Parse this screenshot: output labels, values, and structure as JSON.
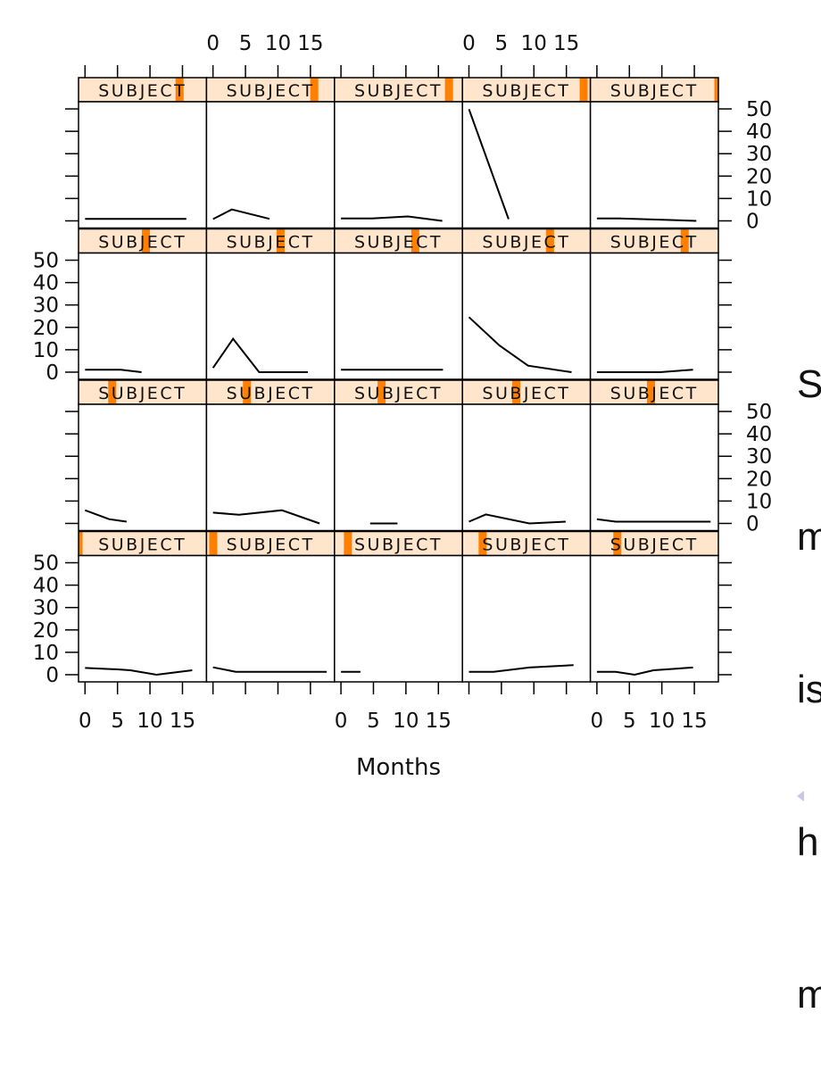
{
  "chart_data": {
    "type": "line",
    "layout": {
      "columns": 5,
      "rows": 4
    },
    "xlabel": "Months",
    "ylabel": "",
    "xlim": [
      -1,
      18.7
    ],
    "ylim": [
      -3.2,
      53.2
    ],
    "xticks": [
      0,
      5,
      10,
      15
    ],
    "xtick_labels": [
      "0",
      "5",
      "10",
      "15"
    ],
    "yticks": [
      0,
      10,
      20,
      30,
      40,
      50
    ],
    "ytick_labels": [
      "0",
      "10",
      "20",
      "30",
      "40",
      "50"
    ],
    "strip_label": "SUBJECT",
    "n_levels": 20,
    "grid": false,
    "panels": [
      {
        "subject": 1,
        "months": [
          0,
          5,
          7,
          11,
          16.5
        ],
        "values": [
          3,
          2.4,
          2,
          0,
          2
        ]
      },
      {
        "subject": 2,
        "months": [
          0,
          3.5,
          7,
          11,
          17.5
        ],
        "values": [
          3.3,
          1.3,
          1.3,
          1.3,
          1.3
        ]
      },
      {
        "subject": 3,
        "months": [
          0,
          3
        ],
        "values": [
          1.3,
          1.3
        ]
      },
      {
        "subject": 4,
        "months": [
          0,
          3.8,
          9.3,
          16.1
        ],
        "values": [
          1.3,
          1.3,
          3.2,
          4.3
        ]
      },
      {
        "subject": 5,
        "months": [
          0,
          2.9,
          5.8,
          8.7,
          14.8
        ],
        "values": [
          1.3,
          1.3,
          0,
          2,
          3.2
        ]
      },
      {
        "subject": 6,
        "months": [
          0,
          3.7,
          6.4
        ],
        "values": [
          5.9,
          1.9,
          0.8
        ]
      },
      {
        "subject": 7,
        "months": [
          0,
          4,
          10.6,
          16.4
        ],
        "values": [
          4.8,
          3.9,
          5.9,
          0
        ]
      },
      {
        "subject": 8,
        "months": [
          4.5,
          8.7
        ],
        "values": [
          0,
          0
        ]
      },
      {
        "subject": 9,
        "months": [
          0,
          2.6,
          9.3,
          14.9
        ],
        "values": [
          0.8,
          4,
          0,
          0.8
        ]
      },
      {
        "subject": 10,
        "months": [
          0,
          2.9,
          17.5
        ],
        "values": [
          1.9,
          0.8,
          0.8
        ]
      },
      {
        "subject": 11,
        "months": [
          0,
          5.5,
          8.7
        ],
        "values": [
          1.1,
          1.1,
          0
        ]
      },
      {
        "subject": 12,
        "months": [
          0,
          3.1,
          7.1,
          14.6
        ],
        "values": [
          1.9,
          14.9,
          0,
          0
        ]
      },
      {
        "subject": 13,
        "months": [
          0,
          15.7
        ],
        "values": [
          1.1,
          1.1
        ]
      },
      {
        "subject": 14,
        "months": [
          0,
          4.7,
          9.1,
          15.8
        ],
        "values": [
          24.6,
          11.9,
          2.9,
          0
        ]
      },
      {
        "subject": 15,
        "months": [
          0,
          9.7,
          14.8
        ],
        "values": [
          0,
          0,
          1.1
        ]
      },
      {
        "subject": 16,
        "months": [
          0,
          15.6
        ],
        "values": [
          0.9,
          0.9
        ]
      },
      {
        "subject": 17,
        "months": [
          0,
          2.9,
          8.7
        ],
        "values": [
          0.8,
          5.1,
          0.9
        ]
      },
      {
        "subject": 18,
        "months": [
          0,
          4.8,
          10.3,
          15.6
        ],
        "values": [
          1.1,
          1.1,
          2,
          0
        ]
      },
      {
        "subject": 19,
        "months": [
          0,
          6.1
        ],
        "values": [
          49.9,
          0.8
        ]
      },
      {
        "subject": 20,
        "months": [
          0,
          3.5,
          15.3
        ],
        "values": [
          1.1,
          1.1,
          0
        ]
      }
    ],
    "colors": {
      "strip_bg": "#ffe5cc",
      "strip_indicator": "#ff7f00",
      "line": "#000000"
    }
  },
  "side_text": [
    "S",
    "m",
    "is",
    "h",
    "m"
  ]
}
